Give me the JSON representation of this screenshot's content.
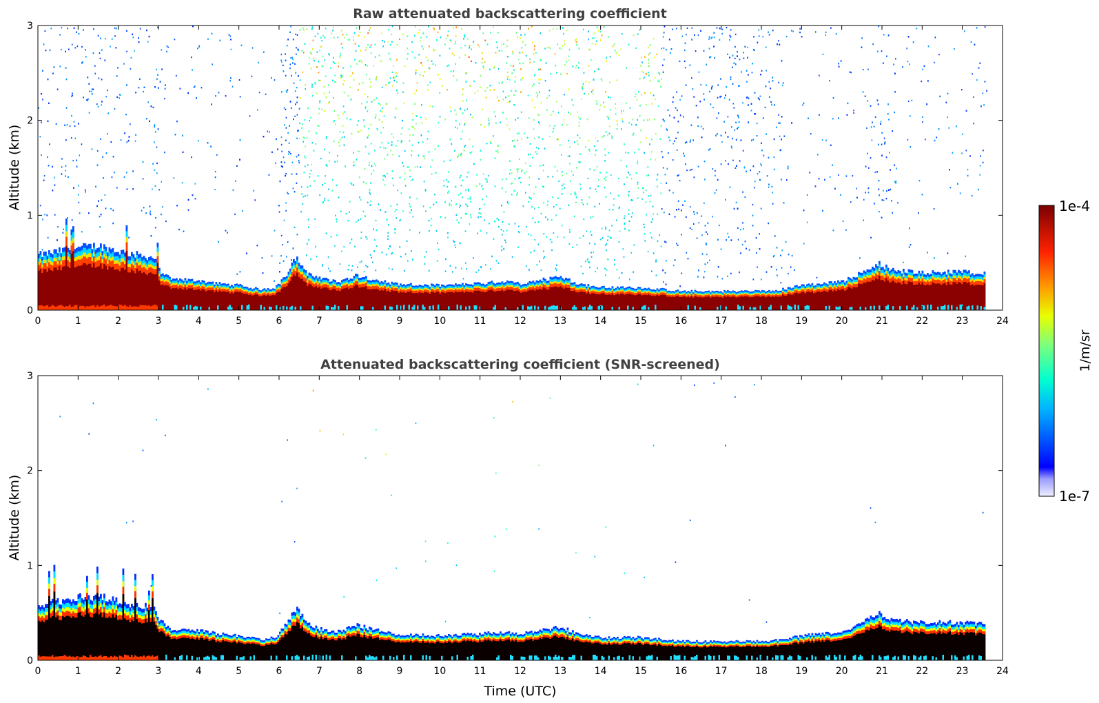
{
  "chart_data": [
    {
      "type": "heatmap",
      "title": "Raw attenuated backscattering coefficient",
      "xlabel": "",
      "ylabel": "Altitude (km)",
      "xlim": [
        0,
        24
      ],
      "ylim": [
        0,
        3
      ],
      "x_ticks": [
        "0",
        "1",
        "2",
        "3",
        "4",
        "5",
        "6",
        "7",
        "8",
        "9",
        "10",
        "11",
        "12",
        "13",
        "14",
        "15",
        "16",
        "17",
        "18",
        "19",
        "20",
        "21",
        "22",
        "23",
        "24"
      ],
      "y_ticks": [
        "0",
        "1",
        "2",
        "3"
      ],
      "grid": false,
      "data_end_time": 23.6,
      "boundary_layer_top_km": [
        [
          0.0,
          0.58
        ],
        [
          0.5,
          0.62
        ],
        [
          1.0,
          0.66
        ],
        [
          1.5,
          0.68
        ],
        [
          2.0,
          0.62
        ],
        [
          2.5,
          0.58
        ],
        [
          2.9,
          0.55
        ],
        [
          3.0,
          0.42
        ],
        [
          3.3,
          0.33
        ],
        [
          4.0,
          0.31
        ],
        [
          4.5,
          0.28
        ],
        [
          5.0,
          0.26
        ],
        [
          5.5,
          0.22
        ],
        [
          5.9,
          0.24
        ],
        [
          6.2,
          0.4
        ],
        [
          6.4,
          0.55
        ],
        [
          6.7,
          0.38
        ],
        [
          7.0,
          0.33
        ],
        [
          7.5,
          0.3
        ],
        [
          7.9,
          0.37
        ],
        [
          8.2,
          0.34
        ],
        [
          8.6,
          0.3
        ],
        [
          9.0,
          0.27
        ],
        [
          10.0,
          0.26
        ],
        [
          11.0,
          0.28
        ],
        [
          11.5,
          0.3
        ],
        [
          12.0,
          0.28
        ],
        [
          12.5,
          0.32
        ],
        [
          13.0,
          0.35
        ],
        [
          13.5,
          0.27
        ],
        [
          14.0,
          0.24
        ],
        [
          15.0,
          0.24
        ],
        [
          16.0,
          0.2
        ],
        [
          17.0,
          0.2
        ],
        [
          18.0,
          0.2
        ],
        [
          18.5,
          0.22
        ],
        [
          19.0,
          0.26
        ],
        [
          19.5,
          0.28
        ],
        [
          20.0,
          0.3
        ],
        [
          20.5,
          0.4
        ],
        [
          20.9,
          0.5
        ],
        [
          21.2,
          0.42
        ],
        [
          22.0,
          0.4
        ],
        [
          23.0,
          0.4
        ],
        [
          23.6,
          0.38
        ]
      ]
    },
    {
      "type": "heatmap",
      "title": "Attenuated backscattering coefficient (SNR-screened)",
      "xlabel": "Time (UTC)",
      "ylabel": "Altitude (km)",
      "xlim": [
        0,
        24
      ],
      "ylim": [
        0,
        3
      ],
      "x_ticks": [
        "0",
        "1",
        "2",
        "3",
        "4",
        "5",
        "6",
        "7",
        "8",
        "9",
        "10",
        "11",
        "12",
        "13",
        "14",
        "15",
        "16",
        "17",
        "18",
        "19",
        "20",
        "21",
        "22",
        "23",
        "24"
      ],
      "y_ticks": [
        "0",
        "1",
        "2",
        "3"
      ],
      "grid": false,
      "data_end_time": 23.6
    }
  ],
  "colorbar": {
    "label": "1/m/sr",
    "max_label": "1e-4",
    "min_label": "1e-7",
    "range": [
      1e-07,
      0.0001
    ],
    "scale": "log",
    "colormap": "jet"
  }
}
